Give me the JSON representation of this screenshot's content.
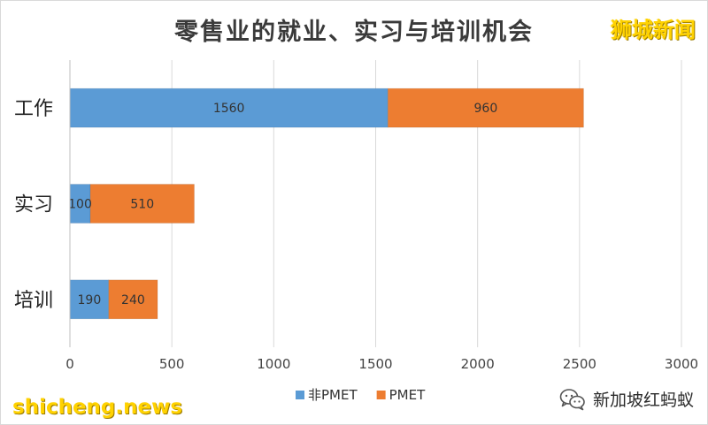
{
  "header": {
    "title": "零售业的就业、实习与培训机会",
    "brand_top": "狮城新闻"
  },
  "footer": {
    "brand_bottom": "shicheng.news",
    "wechat_account": "新加坡红蚂蚁"
  },
  "icons": {
    "wechat": "wechat-icon"
  },
  "chart_data": {
    "type": "bar",
    "orientation": "horizontal",
    "stacked": true,
    "title": "零售业的就业、实习与培训机会",
    "categories": [
      "工作",
      "实习",
      "培训"
    ],
    "series": [
      {
        "name": "非PMET",
        "values": [
          1560,
          100,
          190
        ],
        "color": "#5b9bd5"
      },
      {
        "name": "PMET",
        "values": [
          960,
          510,
          240
        ],
        "color": "#ed7d31"
      }
    ],
    "xlim": [
      0,
      3000
    ],
    "xticks": [
      0,
      500,
      1000,
      1500,
      2000,
      2500,
      3000
    ],
    "data_labels": true,
    "grid": "vertical",
    "legend_position": "bottom"
  }
}
